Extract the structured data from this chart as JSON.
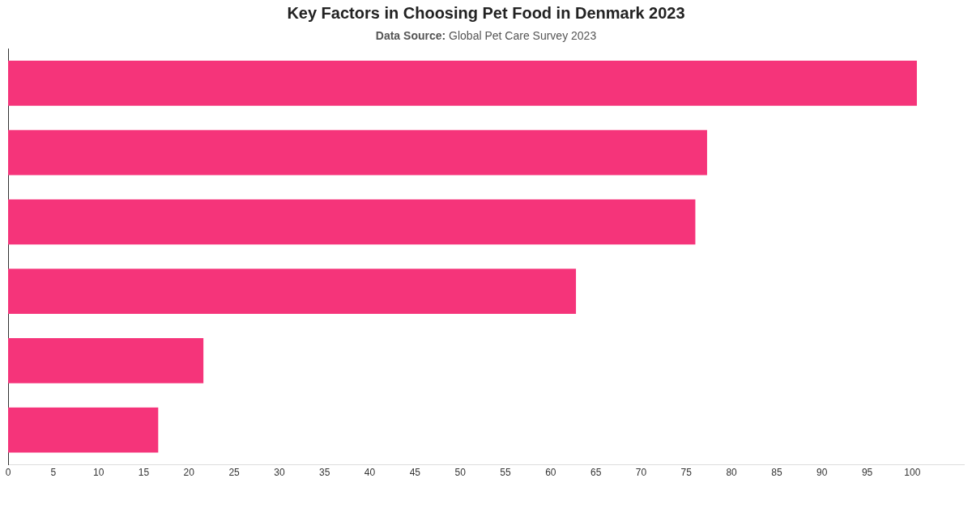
{
  "chart_data": {
    "type": "bar",
    "orientation": "horizontal",
    "title": "Key Factors in Choosing Pet Food in Denmark 2023",
    "subtitle": "Data Source: Global Pet Care Survey 2023",
    "categories": [
      null,
      null,
      null,
      null,
      null,
      null
    ],
    "values": [
      100.5,
      77.3,
      76,
      62.8,
      21.6,
      16.6
    ],
    "color": "#f5347a",
    "xlim": [
      0,
      105.7
    ],
    "xticks": [
      0,
      5,
      10,
      15,
      20,
      25,
      30,
      35,
      40,
      45,
      50,
      55,
      60,
      65,
      70,
      75,
      80,
      85,
      90,
      95,
      100
    ],
    "grid": false,
    "legend": false
  }
}
